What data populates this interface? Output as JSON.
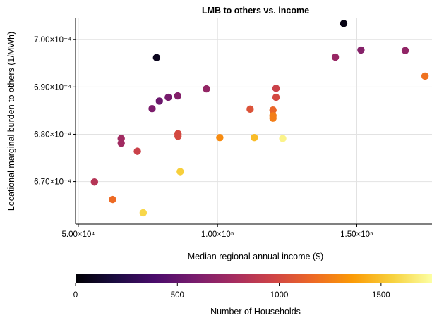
{
  "chart_data": {
    "type": "scatter",
    "title": "LMB to others vs. income",
    "xlabel": "Median regional annual income ($)",
    "ylabel": "Locational marginal burden to others (1/MWh)",
    "xlim": [
      49000,
      177000
    ],
    "ylim": [
      0.000661,
      0.0007045
    ],
    "grid": true,
    "x_ticks": [
      {
        "value": 50000,
        "label": "5.00×10⁴"
      },
      {
        "value": 100000,
        "label": "1.00×10⁵"
      },
      {
        "value": 150000,
        "label": "1.50×10⁵"
      }
    ],
    "y_ticks": [
      {
        "value": 0.00067,
        "label": "6.70×10⁻⁴"
      },
      {
        "value": 0.00068,
        "label": "6.80×10⁻⁴"
      },
      {
        "value": 0.00069,
        "label": "6.90×10⁻⁴"
      },
      {
        "value": 0.0007,
        "label": "7.00×10⁻⁴"
      }
    ],
    "colorbar": {
      "label": "Number of Households",
      "range": [
        0,
        1750
      ],
      "ticks": [
        {
          "value": 0,
          "label": "0"
        },
        {
          "value": 500,
          "label": "500"
        },
        {
          "value": 1000,
          "label": "1000"
        },
        {
          "value": 1500,
          "label": "1500"
        }
      ],
      "colormap": "inferno-like",
      "stops": [
        "#000004",
        "#1b0c41",
        "#4a0c6b",
        "#781c6d",
        "#a52c60",
        "#cf4446",
        "#ed6925",
        "#fb9b06",
        "#f7d13d",
        "#fcffa4"
      ]
    },
    "points": [
      {
        "x": 55800,
        "y": 0.0006699,
        "c": 850
      },
      {
        "x": 62300,
        "y": 0.0006662,
        "c": 1170
      },
      {
        "x": 65400,
        "y": 0.0006791,
        "c": 760
      },
      {
        "x": 65400,
        "y": 0.0006781,
        "c": 760
      },
      {
        "x": 71200,
        "y": 0.0006764,
        "c": 950
      },
      {
        "x": 73300,
        "y": 0.0006634,
        "c": 1580
      },
      {
        "x": 76500,
        "y": 0.0006854,
        "c": 600
      },
      {
        "x": 78100,
        "y": 0.0006962,
        "c": 80
      },
      {
        "x": 79100,
        "y": 0.000687,
        "c": 530
      },
      {
        "x": 82300,
        "y": 0.0006878,
        "c": 580
      },
      {
        "x": 85700,
        "y": 0.0006881,
        "c": 630
      },
      {
        "x": 85800,
        "y": 0.0006801,
        "c": 1000
      },
      {
        "x": 85800,
        "y": 0.0006796,
        "c": 1000
      },
      {
        "x": 86600,
        "y": 0.0006721,
        "c": 1550
      },
      {
        "x": 96000,
        "y": 0.0006896,
        "c": 700
      },
      {
        "x": 100800,
        "y": 0.0006793,
        "c": 1300
      },
      {
        "x": 111700,
        "y": 0.0006853,
        "c": 1050
      },
      {
        "x": 113200,
        "y": 0.0006793,
        "c": 1480
      },
      {
        "x": 119900,
        "y": 0.0006851,
        "c": 1150
      },
      {
        "x": 119900,
        "y": 0.0006839,
        "c": 1250
      },
      {
        "x": 119900,
        "y": 0.0006834,
        "c": 1250
      },
      {
        "x": 121000,
        "y": 0.0006897,
        "c": 950
      },
      {
        "x": 121000,
        "y": 0.0006878,
        "c": 1000
      },
      {
        "x": 123400,
        "y": 0.0006791,
        "c": 1700
      },
      {
        "x": 142300,
        "y": 0.0006963,
        "c": 720
      },
      {
        "x": 145300,
        "y": 0.0007034,
        "c": 50
      },
      {
        "x": 151500,
        "y": 0.0006978,
        "c": 640
      },
      {
        "x": 167400,
        "y": 0.0006977,
        "c": 690
      },
      {
        "x": 174500,
        "y": 0.0006923,
        "c": 1200
      }
    ]
  }
}
